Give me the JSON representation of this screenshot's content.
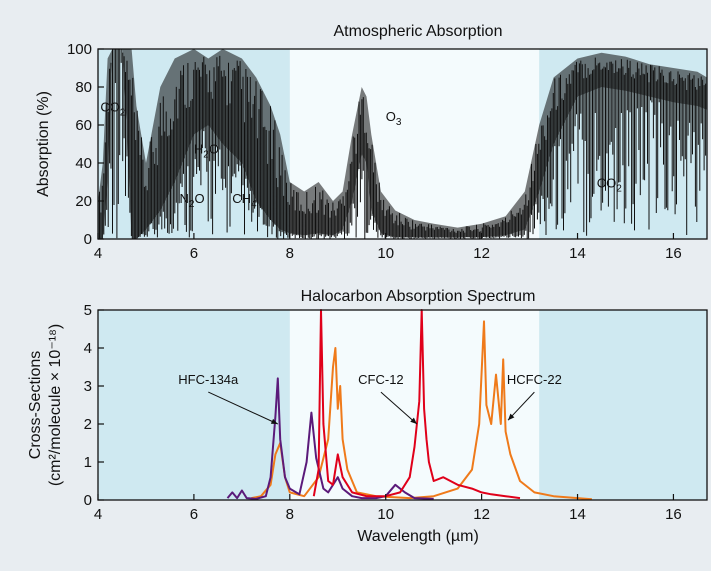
{
  "colors": {
    "background": "#e8edf1",
    "absorbing_band": "#cfe9f1",
    "window_band": "#f4fbfd",
    "spectrum": "#111111",
    "HFC-134a": "#5b1a7a",
    "CFC-12": "#e0001a",
    "HCFC-22": "#ef7a1a"
  },
  "chart_data": [
    {
      "type": "area",
      "title": "Atmospheric Absorption",
      "xlabel": "",
      "ylabel": "Absorption (%)",
      "xlim": [
        4,
        16.7
      ],
      "ylim": [
        0,
        100
      ],
      "xticks": [
        "4",
        "6",
        "8",
        "10",
        "12",
        "14",
        "16"
      ],
      "yticks": [
        "0",
        "20",
        "40",
        "60",
        "80",
        "100"
      ],
      "window_band": [
        8,
        13.2
      ],
      "annotations": [
        {
          "text": "CO",
          "sub": "2",
          "x": 4.05,
          "y": 67
        },
        {
          "text": "H",
          "sub": "2",
          "tail": "O",
          "x": 6.0,
          "y": 45
        },
        {
          "text": "N",
          "sub": "2",
          "tail": "O",
          "x": 5.7,
          "y": 19
        },
        {
          "text": "CH",
          "sub": "4",
          "x": 6.8,
          "y": 19
        },
        {
          "text": "O",
          "sub": "3",
          "x": 10.0,
          "y": 62
        },
        {
          "text": "CO",
          "sub": "2",
          "x": 14.4,
          "y": 27
        }
      ],
      "series": [
        {
          "x": [
            4.0,
            4.1,
            4.2,
            4.3,
            4.4,
            4.5,
            4.6,
            4.7,
            4.8,
            5.0,
            5.3,
            5.6,
            6.0,
            6.3,
            6.6,
            7.0,
            7.3,
            7.6,
            7.8,
            8.0,
            8.3,
            8.6,
            8.9,
            9.1,
            9.3,
            9.5,
            9.6,
            9.7,
            9.9,
            10.2,
            10.6,
            11.0,
            11.5,
            12.0,
            12.5,
            12.9,
            13.2,
            13.5,
            14.0,
            14.5,
            15.0,
            15.5,
            16.0,
            16.5,
            16.7
          ],
          "upper": [
            20,
            40,
            95,
            100,
            100,
            100,
            100,
            100,
            70,
            40,
            80,
            95,
            100,
            95,
            100,
            95,
            85,
            70,
            55,
            30,
            25,
            30,
            20,
            25,
            55,
            80,
            75,
            55,
            25,
            15,
            10,
            8,
            6,
            8,
            12,
            25,
            60,
            85,
            95,
            98,
            96,
            92,
            90,
            88,
            85
          ],
          "lower": [
            0,
            0,
            30,
            100,
            100,
            100,
            60,
            0,
            0,
            5,
            15,
            30,
            55,
            60,
            50,
            40,
            20,
            10,
            5,
            3,
            2,
            3,
            2,
            5,
            20,
            45,
            40,
            15,
            3,
            1,
            1,
            1,
            1,
            1,
            2,
            5,
            25,
            50,
            75,
            80,
            78,
            75,
            72,
            70,
            68
          ]
        }
      ]
    },
    {
      "type": "line",
      "title": "Halocarbon Absorption Spectrum",
      "xlabel": "Wavelength (µm)",
      "ylabel_line1": "Cross-Sections",
      "ylabel_line2": "(cm²/molecule × 10⁻¹⁸)",
      "xlim": [
        4,
        16.7
      ],
      "ylim": [
        0,
        5
      ],
      "xticks": [
        "4",
        "6",
        "8",
        "10",
        "12",
        "14",
        "16"
      ],
      "yticks": [
        "0",
        "1",
        "2",
        "3",
        "4",
        "5"
      ],
      "window_band": [
        8,
        13.2
      ],
      "series": [
        {
          "name": "HFC-134a",
          "x": [
            6.7,
            6.8,
            6.9,
            7.0,
            7.1,
            7.3,
            7.5,
            7.6,
            7.7,
            7.75,
            7.8,
            7.9,
            8.0,
            8.2,
            8.35,
            8.45,
            8.55,
            8.7,
            8.8,
            8.9,
            9.0,
            9.1,
            9.3,
            9.5,
            9.8,
            10.0,
            10.2,
            10.4,
            10.6,
            11.0
          ],
          "y": [
            0.05,
            0.2,
            0.05,
            0.25,
            0.05,
            0.03,
            0.1,
            0.6,
            2.2,
            3.2,
            1.6,
            0.6,
            0.3,
            0.15,
            1.0,
            2.3,
            1.1,
            0.3,
            0.2,
            0.4,
            0.6,
            0.3,
            0.1,
            0.05,
            0.05,
            0.1,
            0.4,
            0.2,
            0.05,
            0.03
          ]
        },
        {
          "name": "CFC-12",
          "x": [
            8.5,
            8.6,
            8.65,
            8.7,
            8.8,
            8.9,
            9.0,
            9.1,
            9.3,
            9.6,
            10.0,
            10.3,
            10.5,
            10.6,
            10.7,
            10.75,
            10.8,
            10.85,
            10.9,
            11.0,
            11.2,
            11.5,
            11.8,
            12.0,
            12.2,
            12.5,
            12.8
          ],
          "y": [
            0.1,
            0.8,
            5.0,
            2.0,
            0.5,
            0.4,
            1.2,
            0.6,
            0.2,
            0.1,
            0.1,
            0.2,
            0.6,
            1.4,
            2.6,
            5.0,
            2.4,
            1.6,
            1.0,
            0.5,
            0.6,
            0.4,
            0.3,
            0.2,
            0.15,
            0.1,
            0.05
          ]
        },
        {
          "name": "HCFC-22",
          "x": [
            7.2,
            7.4,
            7.6,
            7.7,
            7.8,
            7.9,
            8.0,
            8.3,
            8.6,
            8.8,
            8.9,
            8.95,
            9.0,
            9.05,
            9.1,
            9.2,
            9.4,
            9.8,
            10.5,
            11.0,
            11.5,
            11.8,
            11.95,
            12.05,
            12.1,
            12.2,
            12.3,
            12.4,
            12.45,
            12.5,
            12.6,
            12.8,
            13.1,
            13.5,
            14.0,
            14.3
          ],
          "y": [
            0.05,
            0.1,
            0.4,
            1.2,
            1.5,
            0.6,
            0.2,
            0.1,
            0.6,
            1.6,
            3.5,
            4.0,
            2.4,
            3.0,
            1.6,
            0.8,
            0.2,
            0.1,
            0.05,
            0.1,
            0.3,
            0.8,
            2.0,
            4.7,
            2.5,
            2.0,
            3.3,
            2.0,
            3.7,
            1.8,
            1.2,
            0.5,
            0.2,
            0.1,
            0.05,
            0.02
          ]
        }
      ],
      "annotations": [
        {
          "text": "HFC-134a",
          "x": 6.3,
          "y": 3.05
        },
        {
          "text": "CFC-12",
          "x": 9.9,
          "y": 3.05
        },
        {
          "text": "HCFC-22",
          "x": 13.1,
          "y": 3.05
        }
      ]
    }
  ]
}
